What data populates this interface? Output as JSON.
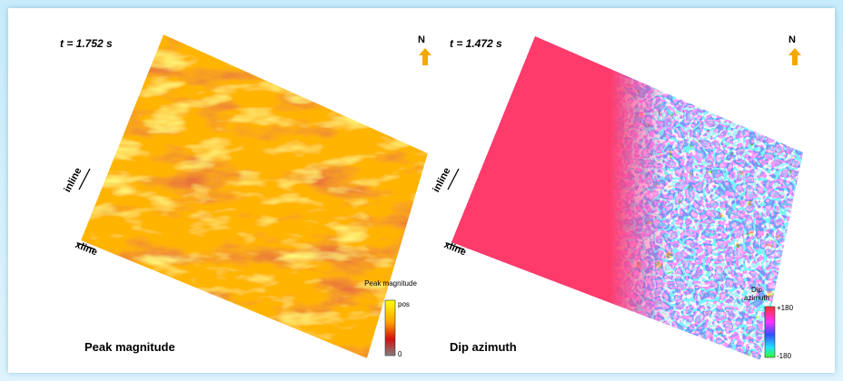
{
  "panels": [
    {
      "time": "t = 1.752 s",
      "north": "N",
      "inline": "inline",
      "xline": "xline",
      "caption": "Peak magnitude",
      "legend": {
        "title": "Peak magnitude",
        "top": "pos",
        "bottom": "0"
      }
    },
    {
      "time": "t = 1.472 s",
      "north": "N",
      "inline": "inline",
      "xline": "xline",
      "caption": "Dip azimuth",
      "legend": {
        "title": "Dip azimuth",
        "top": "+180",
        "bottom": "-180"
      }
    }
  ]
}
